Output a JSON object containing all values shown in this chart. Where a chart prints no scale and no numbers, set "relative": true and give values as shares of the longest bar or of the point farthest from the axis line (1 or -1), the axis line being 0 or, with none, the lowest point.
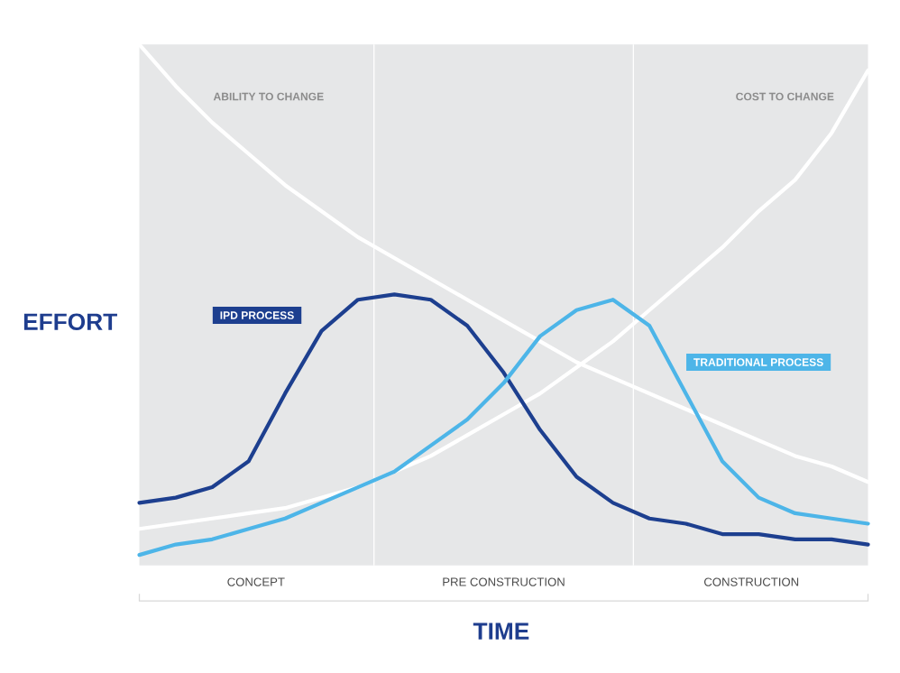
{
  "chart_data": {
    "type": "line",
    "relative": true,
    "xlabel": "TIME",
    "ylabel": "EFFORT",
    "tick_labels": false,
    "legend": false,
    "marker": "none",
    "line_style": "solid",
    "categories": [
      null,
      null,
      null,
      null,
      null,
      null,
      null,
      null,
      null,
      null,
      null,
      null,
      null,
      null,
      null,
      null,
      null,
      null,
      null,
      null,
      null
    ],
    "series": [
      {
        "name": "ABILITY TO CHANGE",
        "color": "#ffffff",
        "values": [
          1.0,
          0.92,
          0.85,
          0.79,
          0.73,
          0.68,
          0.63,
          0.59,
          0.55,
          0.51,
          0.47,
          0.43,
          0.39,
          0.36,
          0.33,
          0.3,
          0.27,
          0.24,
          0.21,
          0.19,
          0.16
        ]
      },
      {
        "name": "COST TO CHANGE",
        "color": "#ffffff",
        "values": [
          0.07,
          0.08,
          0.09,
          0.1,
          0.11,
          0.13,
          0.15,
          0.18,
          0.21,
          0.25,
          0.29,
          0.33,
          0.38,
          0.43,
          0.49,
          0.55,
          0.61,
          0.68,
          0.74,
          0.83,
          0.95
        ]
      },
      {
        "name": "IPD PROCESS",
        "color": "#1d3f8f",
        "values": [
          0.12,
          0.13,
          0.15,
          0.2,
          0.33,
          0.45,
          0.51,
          0.52,
          0.51,
          0.46,
          0.37,
          0.26,
          0.17,
          0.12,
          0.09,
          0.08,
          0.06,
          0.06,
          0.05,
          0.05,
          0.04
        ]
      },
      {
        "name": "TRADITIONAL PROCESS",
        "color": "#4db5e8",
        "values": [
          0.02,
          0.04,
          0.05,
          0.07,
          0.09,
          0.12,
          0.15,
          0.18,
          0.23,
          0.28,
          0.35,
          0.44,
          0.49,
          0.51,
          0.46,
          0.33,
          0.2,
          0.13,
          0.1,
          0.09,
          0.08
        ]
      }
    ],
    "annotations": [
      "CONCEPT",
      "PRE CONSTRUCTION",
      "CONSTRUCTION"
    ]
  }
}
